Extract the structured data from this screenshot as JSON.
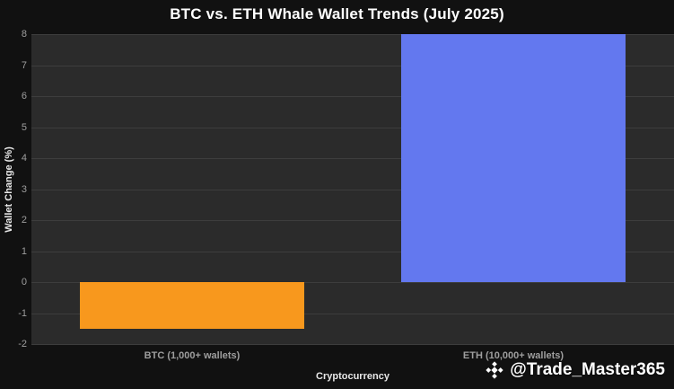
{
  "watermark": {
    "handle": "@Trade_Master365",
    "logo": "binance-diamonds"
  },
  "chart_data": {
    "type": "bar",
    "title": "BTC vs. ETH Whale Wallet Trends (July 2025)",
    "categories": [
      "BTC (1,000+ wallets)",
      "ETH (10,000+ wallets)"
    ],
    "values": [
      -1.5,
      8
    ],
    "bar_colors": [
      "#F8981D",
      "#6378EF"
    ],
    "xlabel": "Cryptocurrency",
    "ylabel": "Wallet Change (%)",
    "ylim": [
      -2,
      8
    ],
    "ytick_step": 1,
    "grid": true,
    "legend": "none",
    "colors": {
      "figure_bg": "#111111",
      "plot_bg": "#2b2b2b",
      "grid_line": "#3d3d3d",
      "tick_text": "#9e9e9e",
      "axis_title_text": "#e8e8e8",
      "title_text": "#ffffff",
      "watermark_text": "#ffffff"
    }
  }
}
